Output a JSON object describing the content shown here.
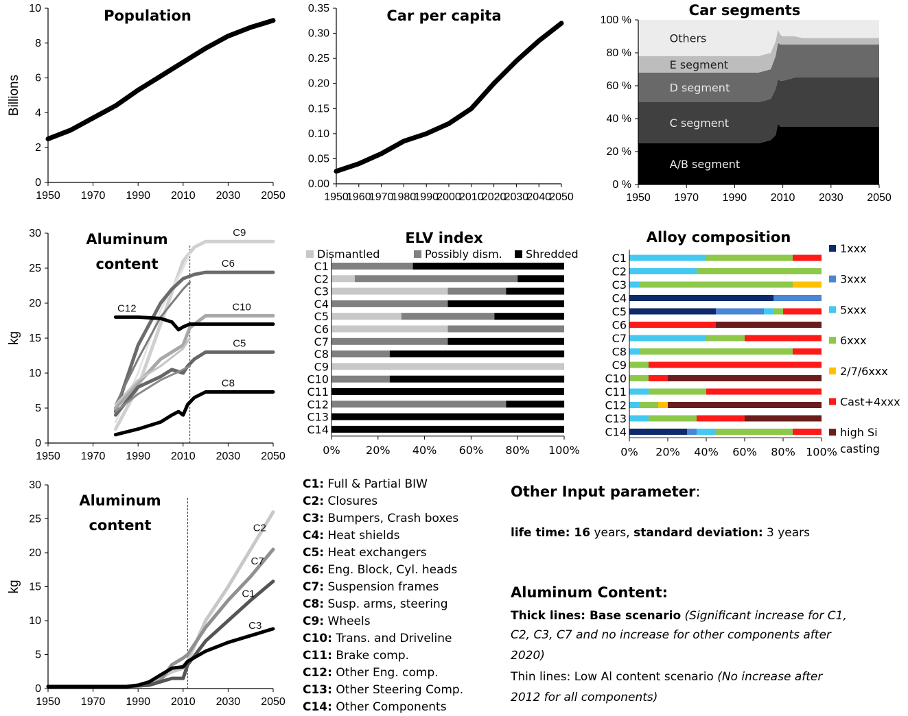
{
  "chart_data": [
    {
      "id": "population",
      "type": "line",
      "title": "Population",
      "ylabel": "Billions",
      "xlim": [
        1950,
        2050
      ],
      "ylim": [
        0,
        10
      ],
      "xticks": [
        "1950",
        "1970",
        "1990",
        "2010",
        "2030",
        "2050"
      ],
      "yticks": [
        "0",
        "2",
        "4",
        "6",
        "8",
        "10"
      ],
      "series": [
        {
          "x": [
            1950,
            1960,
            1970,
            1980,
            1990,
            2000,
            2010,
            2020,
            2030,
            2040,
            2050
          ],
          "y": [
            2.5,
            3.0,
            3.7,
            4.4,
            5.3,
            6.1,
            6.9,
            7.7,
            8.4,
            8.9,
            9.3
          ]
        }
      ]
    },
    {
      "id": "car_per_capita",
      "type": "line",
      "title": "Car per capita",
      "xlim": [
        1950,
        2050
      ],
      "ylim": [
        0,
        0.35
      ],
      "xticks": [
        "1950",
        "1960",
        "1970",
        "1980",
        "1990",
        "2000",
        "2010",
        "2020",
        "2030",
        "2040",
        "2050"
      ],
      "yticks": [
        "0.00",
        "0.05",
        "0.10",
        "0.15",
        "0.20",
        "0.25",
        "0.30",
        "0.35"
      ],
      "series": [
        {
          "x": [
            1950,
            1960,
            1970,
            1980,
            1990,
            2000,
            2010,
            2020,
            2030,
            2040,
            2050
          ],
          "y": [
            0.025,
            0.04,
            0.06,
            0.085,
            0.1,
            0.12,
            0.15,
            0.2,
            0.245,
            0.285,
            0.32
          ]
        }
      ]
    },
    {
      "id": "car_segments",
      "type": "area",
      "title": "Car segments",
      "xlim": [
        1950,
        2050
      ],
      "ylim": [
        0,
        100
      ],
      "xticks": [
        "1950",
        "1970",
        "1990",
        "2010",
        "2030",
        "2050"
      ],
      "yticks": [
        "0 %",
        "20 %",
        "40 %",
        "60 %",
        "80 %",
        "100 %"
      ],
      "x": [
        1950,
        2000,
        2005,
        2007,
        2008,
        2009,
        2010,
        2015,
        2018,
        2050
      ],
      "series": [
        {
          "name": "A/B segment",
          "color": "#000000",
          "values": [
            25,
            25,
            27,
            30,
            37,
            35,
            35,
            35,
            35,
            35
          ]
        },
        {
          "name": "C segment",
          "color": "#404040",
          "values": [
            25,
            25,
            25,
            28,
            27,
            28,
            28,
            30,
            30,
            30
          ]
        },
        {
          "name": "D segment",
          "color": "#696969",
          "values": [
            18,
            18,
            18,
            20,
            22,
            22,
            22,
            20,
            20,
            20
          ]
        },
        {
          "name": "E segment",
          "color": "#bdbdbd",
          "values": [
            10,
            10,
            10,
            9,
            8,
            6,
            5,
            5,
            4,
            4
          ]
        },
        {
          "name": "Others",
          "color": "#ececec",
          "values": [
            22,
            22,
            20,
            13,
            6,
            9,
            10,
            10,
            11,
            11
          ]
        }
      ]
    },
    {
      "id": "aluminum_content_1",
      "type": "line",
      "title": [
        "Aluminum",
        "content"
      ],
      "ylabel": "kg",
      "xlim": [
        1950,
        2050
      ],
      "ylim": [
        0,
        30
      ],
      "xticks": [
        "1950",
        "1970",
        "1990",
        "2010",
        "2030",
        "2050"
      ],
      "yticks": [
        "0",
        "5",
        "10",
        "15",
        "20",
        "25",
        "30"
      ],
      "reference_line_x": 2013,
      "series": [
        {
          "name": "C9",
          "color": "#d0d0d0",
          "x": [
            1980,
            1990,
            2000,
            2010,
            2015,
            2020,
            2050
          ],
          "y": [
            2,
            8,
            17,
            26,
            28,
            28.8,
            28.8
          ]
        },
        {
          "name": "C9",
          "color": "#e4e4e4",
          "x": [
            1980,
            1990,
            2000,
            2010,
            2013
          ],
          "y": [
            3,
            10,
            19,
            25,
            27
          ]
        },
        {
          "name": "C6",
          "color": "#6b6b6b",
          "x": [
            1980,
            1990,
            2000,
            2005,
            2010,
            2015,
            2020,
            2050
          ],
          "y": [
            4.5,
            14,
            20,
            22,
            23.5,
            24.1,
            24.4,
            24.4
          ]
        },
        {
          "name": "C6",
          "color": "#7d7d7d",
          "x": [
            1980,
            1990,
            2000,
            2010,
            2013
          ],
          "y": [
            5.5,
            12,
            18,
            22,
            23
          ]
        },
        {
          "name": "C10",
          "color": "#a8a8a8",
          "x": [
            1980,
            1990,
            2000,
            2010,
            2013,
            2020,
            2050
          ],
          "y": [
            5,
            8.5,
            12,
            14,
            16.5,
            18.2,
            18.2
          ]
        },
        {
          "name": "C10",
          "color": "#c4c4c4",
          "x": [
            1980,
            1990,
            2000,
            2010,
            2013
          ],
          "y": [
            5.5,
            9,
            11,
            13.5,
            15
          ]
        },
        {
          "name": "C5",
          "color": "#666666",
          "x": [
            1980,
            1985,
            1990,
            2000,
            2005,
            2010,
            2012,
            2015,
            2020,
            2050
          ],
          "y": [
            4,
            6,
            8,
            9.5,
            10.5,
            10,
            11,
            12,
            13,
            13
          ]
        },
        {
          "name": "C5",
          "color": "#8a8a8a",
          "x": [
            1980,
            1990,
            2000,
            2010,
            2013
          ],
          "y": [
            4.5,
            7,
            9,
            10.5,
            11
          ]
        },
        {
          "name": "C12",
          "color": "#000000",
          "x": [
            1980,
            1990,
            2000,
            2005,
            2008,
            2010,
            2013,
            2020,
            2050
          ],
          "y": [
            18,
            18,
            17.8,
            17.3,
            16.2,
            16.6,
            17,
            17,
            17
          ]
        },
        {
          "name": "C8",
          "color": "#000000",
          "x": [
            1980,
            1990,
            2000,
            2005,
            2008,
            2010,
            2012,
            2015,
            2020,
            2050
          ],
          "y": [
            1.2,
            2,
            3,
            4,
            4.5,
            4,
            5.5,
            6.5,
            7.3,
            7.3
          ]
        }
      ]
    },
    {
      "id": "elv_index",
      "type": "bar",
      "orientation": "horizontal",
      "stacked": true,
      "title": "ELV index",
      "legend_position": "top",
      "xticks": [
        "0%",
        "20%",
        "40%",
        "60%",
        "80%",
        "100%"
      ],
      "categories": [
        "C1",
        "C2",
        "C3",
        "C4",
        "C5",
        "C6",
        "C7",
        "C8",
        "C9",
        "C10",
        "C11",
        "C12",
        "C13",
        "C14"
      ],
      "series": [
        {
          "name": "Dismantled",
          "color": "#c8c8c8",
          "values": [
            0,
            10,
            50,
            0,
            30,
            50,
            0,
            0,
            100,
            0,
            0,
            0,
            0,
            0
          ]
        },
        {
          "name": "Possibly dism.",
          "color": "#808080",
          "values": [
            35,
            70,
            25,
            50,
            40,
            50,
            50,
            25,
            0,
            25,
            0,
            75,
            0,
            0
          ]
        },
        {
          "name": "Shredded",
          "color": "#000000",
          "values": [
            65,
            20,
            25,
            50,
            30,
            0,
            50,
            75,
            0,
            75,
            100,
            25,
            100,
            100
          ]
        }
      ]
    },
    {
      "id": "alloy_composition",
      "type": "bar",
      "orientation": "horizontal",
      "stacked": true,
      "title": "Alloy composition",
      "legend_position": "right",
      "xticks": [
        "0%",
        "20%",
        "40%",
        "60%",
        "80%",
        "100%"
      ],
      "categories": [
        "C1",
        "C2",
        "C3",
        "C4",
        "C5",
        "C6",
        "C7",
        "C8",
        "C9",
        "C10",
        "C11",
        "C12",
        "C13",
        "C14"
      ],
      "series": [
        {
          "name": "1xxx",
          "color": "#0d2a6b",
          "values": [
            0,
            0,
            0,
            75,
            45,
            0,
            0,
            0,
            0,
            0,
            0,
            0,
            0,
            30
          ]
        },
        {
          "name": "3xxx",
          "color": "#4a86d4",
          "values": [
            0,
            0,
            0,
            25,
            25,
            0,
            0,
            0,
            0,
            0,
            0,
            0,
            0,
            5
          ]
        },
        {
          "name": "5xxx",
          "color": "#45c8f0",
          "values": [
            40,
            35,
            5,
            0,
            5,
            0,
            40,
            5,
            0,
            0,
            10,
            5,
            10,
            10
          ]
        },
        {
          "name": "6xxx",
          "color": "#8dc84a",
          "values": [
            45,
            65,
            80,
            0,
            5,
            0,
            20,
            80,
            10,
            10,
            30,
            10,
            25,
            40
          ]
        },
        {
          "name": "2/7/6xxx",
          "color": "#ffc000",
          "values": [
            0,
            0,
            15,
            0,
            0,
            0,
            0,
            0,
            0,
            0,
            0,
            5,
            0,
            0
          ]
        },
        {
          "name": "Cast+4xxx",
          "color": "#ff1a1a",
          "values": [
            15,
            0,
            0,
            0,
            20,
            45,
            40,
            15,
            90,
            10,
            60,
            0,
            25,
            15
          ]
        },
        {
          "name": "high Si casting",
          "color": "#6b1d1d",
          "values": [
            0,
            0,
            0,
            0,
            0,
            55,
            0,
            0,
            0,
            80,
            0,
            80,
            40,
            0
          ]
        }
      ]
    },
    {
      "id": "aluminum_content_2",
      "type": "line",
      "title": [
        "Aluminum",
        "content"
      ],
      "ylabel": "kg",
      "xlim": [
        1950,
        2050
      ],
      "ylim": [
        0,
        30
      ],
      "xticks": [
        "1950",
        "1970",
        "1990",
        "2010",
        "2030",
        "2050"
      ],
      "yticks": [
        "0",
        "5",
        "10",
        "15",
        "20",
        "25",
        "30"
      ],
      "reference_line_x": 2012,
      "series": [
        {
          "name": "C2",
          "color": "#c8c8c8",
          "x": [
            1950,
            1985,
            1995,
            2000,
            2005,
            2010,
            2012,
            2020,
            2030,
            2040,
            2050
          ],
          "y": [
            0.3,
            0.3,
            0.5,
            1.5,
            2.5,
            3,
            4,
            10,
            15,
            20.5,
            26
          ]
        },
        {
          "name": "C7",
          "color": "#909090",
          "x": [
            1950,
            1985,
            1995,
            2000,
            2005,
            2010,
            2012,
            2020,
            2030,
            2040,
            2050
          ],
          "y": [
            0.3,
            0.3,
            0.5,
            1.2,
            3.5,
            4.5,
            5,
            9,
            13,
            16.5,
            20.5
          ]
        },
        {
          "name": "C1",
          "color": "#555555",
          "x": [
            1950,
            1985,
            1995,
            2000,
            2005,
            2010,
            2012,
            2020,
            2030,
            2040,
            2050
          ],
          "y": [
            0.3,
            0.3,
            0.5,
            1,
            1.5,
            1.5,
            3.5,
            7,
            10,
            13,
            15.8
          ]
        },
        {
          "name": "C3",
          "color": "#000000",
          "x": [
            1950,
            1985,
            1990,
            1995,
            2000,
            2005,
            2010,
            2012,
            2020,
            2030,
            2040,
            2050
          ],
          "y": [
            0.3,
            0.3,
            0.5,
            1,
            2,
            3,
            3.2,
            4,
            5.5,
            6.8,
            7.8,
            8.8
          ]
        }
      ]
    }
  ],
  "component_legend": [
    {
      "code": "C1:",
      "name": "Full & Partial BIW"
    },
    {
      "code": "C2:",
      "name": "Closures"
    },
    {
      "code": "C3:",
      "name": "Bumpers, Crash boxes"
    },
    {
      "code": "C4:",
      "name": "Heat shields"
    },
    {
      "code": "C5:",
      "name": "Heat exchangers"
    },
    {
      "code": "C6:",
      "name": "Eng. Block, Cyl. heads"
    },
    {
      "code": "C7:",
      "name": "Suspension frames"
    },
    {
      "code": "C8:",
      "name": "Susp. arms, steering"
    },
    {
      "code": "C9:",
      "name": "Wheels"
    },
    {
      "code": "C10:",
      "name": "Trans. and Driveline"
    },
    {
      "code": "C11:",
      "name": "Brake comp."
    },
    {
      "code": "C12:",
      "name": "Other Eng. comp."
    },
    {
      "code": "C13:",
      "name": "Other Steering Comp."
    },
    {
      "code": "C14:",
      "name": "Other Components"
    }
  ],
  "notes": {
    "other_input_title": "Other Input parameter",
    "other_input_colon": ":",
    "lifetime_label": "life time: 16",
    "lifetime_unit": " years, ",
    "std_label": "standard deviation:",
    "std_value": "  3 years",
    "al_content_title": "Aluminum Content:",
    "thick_label": "Thick lines: Base scenario",
    "thick_desc_1": " (Significant increase for C1,",
    "thick_desc_2": "C2, C3, C7 and no increase for other components after",
    "thick_desc_3": "2020)",
    "thin_label": "Thin lines: Low Al content scenario",
    "thin_desc_1": " (No increase after",
    "thin_desc_2": "2012 for all components)"
  }
}
